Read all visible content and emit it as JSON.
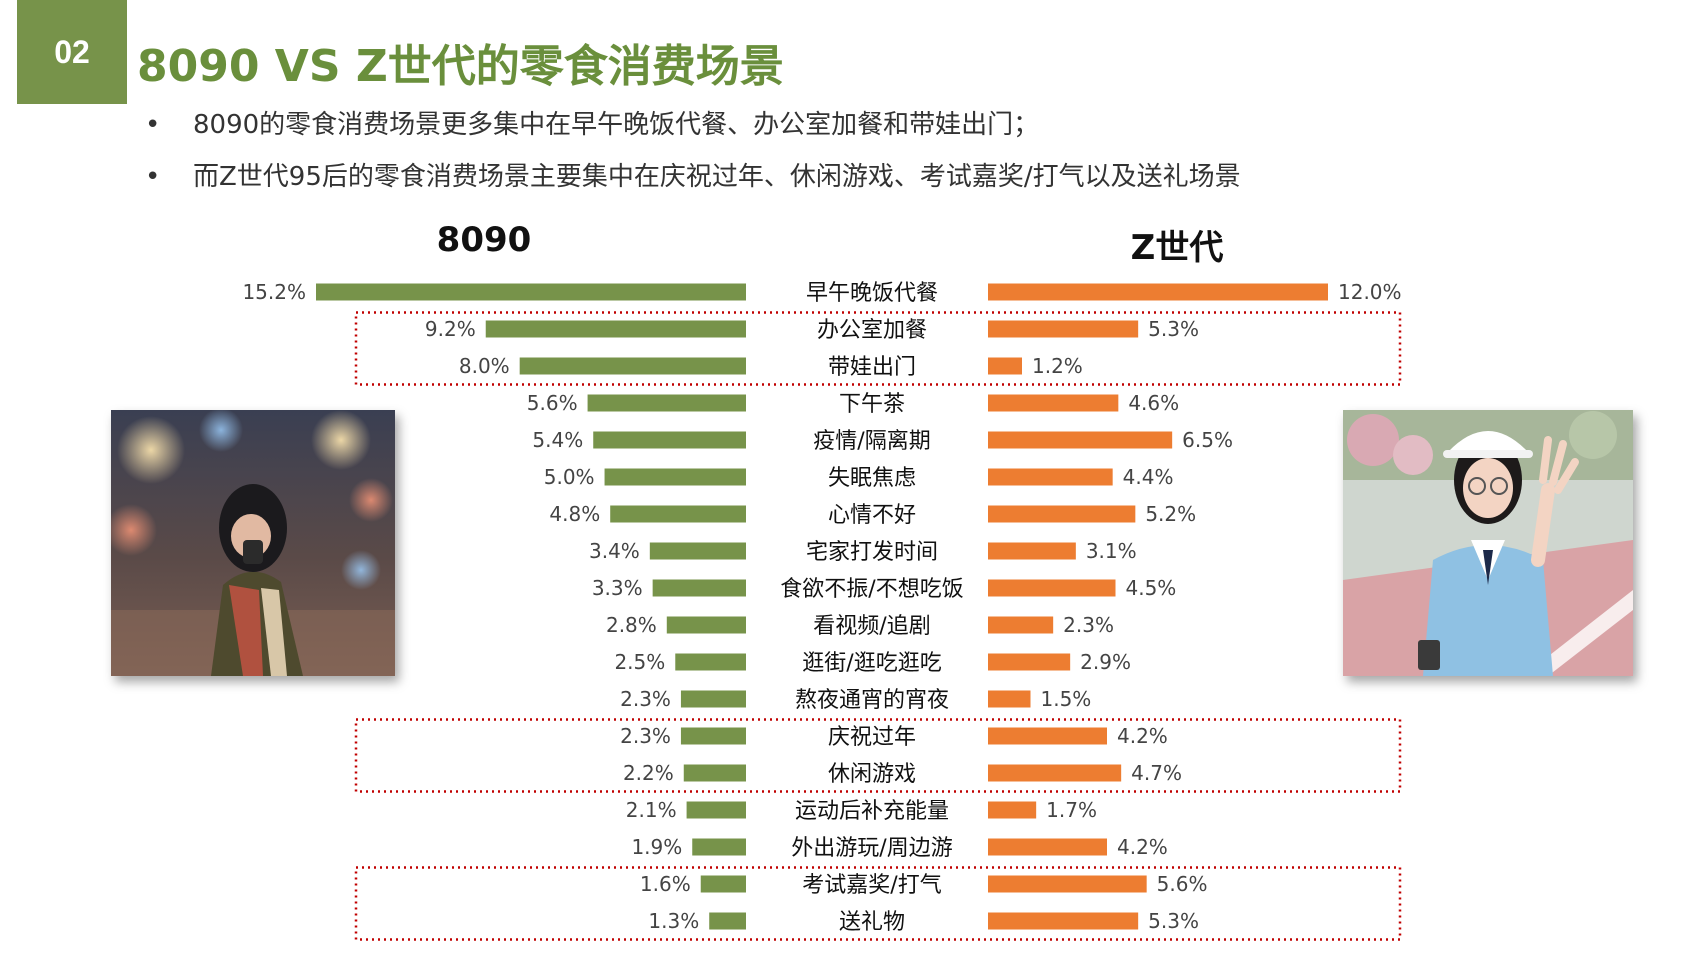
{
  "slide": {
    "number": "02",
    "title": "8090 VS Z世代的零食消费场景",
    "bullets": [
      "8090的零食消费场景更多集中在早午晚饭代餐、办公室加餐和带娃出门；",
      "而Z世代95后的零食消费场景主要集中在庆祝过年、休闲游戏、考试嘉奖/打气以及送礼场景"
    ],
    "photo_left": "photo-woman-night-street",
    "photo_right": "photo-girl-blue-shirt"
  },
  "colors": {
    "green": "#77934a",
    "orange": "#ed7d31",
    "highlight": "#c00000"
  },
  "chart_data": {
    "type": "bar",
    "orientation": "horizontal-butterfly",
    "categories": [
      "早午晚饭代餐",
      "办公室加餐",
      "带娃出门",
      "下午茶",
      "疫情/隔离期",
      "失眠焦虑",
      "心情不好",
      "宅家打发时间",
      "食欲不振/不想吃饭",
      "看视频/追剧",
      "逛街/逛吃逛吃",
      "熬夜通宵的宵夜",
      "庆祝过年",
      "休闲游戏",
      "运动后补充能量",
      "外出游玩/周边游",
      "考试嘉奖/打气",
      "送礼物"
    ],
    "series": [
      {
        "name": "8090",
        "labels": [
          "15.2%",
          "9.2%",
          "8.0%",
          "5.6%",
          "5.4%",
          "5.0%",
          "4.8%",
          "3.4%",
          "3.3%",
          "2.8%",
          "2.5%",
          "2.3%",
          "2.3%",
          "2.2%",
          "2.1%",
          "1.9%",
          "1.6%",
          "1.3%"
        ],
        "values": [
          15.2,
          9.2,
          8.0,
          5.6,
          5.4,
          5.0,
          4.8,
          3.4,
          3.3,
          2.8,
          2.5,
          2.3,
          2.3,
          2.2,
          2.1,
          1.9,
          1.6,
          1.3
        ]
      },
      {
        "name": "Z世代",
        "labels": [
          "12.0%",
          "5.3%",
          "1.2%",
          "4.6%",
          "6.5%",
          "4.4%",
          "5.2%",
          "3.1%",
          "4.5%",
          "2.3%",
          "2.9%",
          "1.5%",
          "4.2%",
          "4.7%",
          "1.7%",
          "4.2%",
          "5.6%",
          "5.3%"
        ],
        "values": [
          12.0,
          5.3,
          1.2,
          4.6,
          6.5,
          4.4,
          5.2,
          3.1,
          4.5,
          2.3,
          2.9,
          1.5,
          4.2,
          4.7,
          1.7,
          4.2,
          5.6,
          5.3
        ]
      }
    ],
    "highlight_groups": [
      [
        "办公室加餐",
        "带娃出门"
      ],
      [
        "庆祝过年",
        "休闲游戏"
      ],
      [
        "考试嘉奖/打气",
        "送礼物"
      ]
    ],
    "gridlines": false,
    "axis_visible": false
  }
}
